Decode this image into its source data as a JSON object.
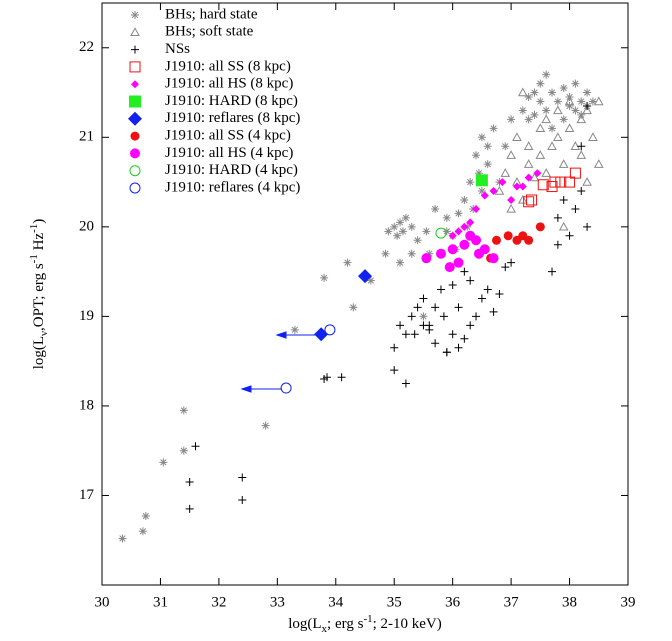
{
  "chart_data": {
    "type": "scatter",
    "xlabel_parts": [
      "log(L",
      "x",
      "; erg s",
      "-1",
      "; 2-10 keV)"
    ],
    "ylabel_parts": [
      "log(L",
      "ν",
      ",OPT; erg s",
      "-1",
      " Hz",
      "-1",
      ")"
    ],
    "xlim": [
      30,
      39
    ],
    "xticks": [
      30,
      31,
      32,
      33,
      34,
      35,
      36,
      37,
      38,
      39
    ],
    "ylim": [
      16,
      22.5
    ],
    "yticks": [
      17,
      18,
      19,
      20,
      21,
      22
    ],
    "legend": "upper left",
    "series": [
      {
        "name": "BHs; hard state",
        "color": "#888888",
        "marker": "asterisk",
        "size": 4,
        "x": [
          30.35,
          30.7,
          30.75,
          31.05,
          31.4,
          31.4,
          32.8,
          33.3,
          33.8,
          34.3,
          34.5,
          34.6,
          34.85,
          34.9,
          35.0,
          35.05,
          35.1,
          35.15,
          35.2,
          35.3,
          35.4,
          35.5,
          35.55,
          35.6,
          35.7,
          35.9,
          36.0,
          36.05,
          36.1,
          36.2,
          36.25,
          36.3,
          36.35,
          36.4,
          36.45,
          36.5,
          36.5,
          36.6,
          36.6,
          36.7,
          36.8,
          37.0,
          37.2,
          37.3,
          37.4,
          37.5,
          37.5,
          37.6,
          37.7,
          37.7,
          37.8,
          37.9,
          37.9,
          38.0,
          38.0,
          38.1,
          38.1,
          38.2,
          38.2,
          38.3,
          38.3,
          38.4,
          37.6,
          37.4,
          37.3,
          36.9,
          35.1,
          35.3,
          34.2,
          35.9
        ],
        "y": [
          16.52,
          16.6,
          16.77,
          17.37,
          17.5,
          17.95,
          17.78,
          18.85,
          19.43,
          19.1,
          19.45,
          19.4,
          19.7,
          19.95,
          20.0,
          19.9,
          20.05,
          19.95,
          20.1,
          20.0,
          19.85,
          19.0,
          19.95,
          19.7,
          20.2,
          20.1,
          19.9,
          19.75,
          20.15,
          20.3,
          20.0,
          20.5,
          20.2,
          20.8,
          20.6,
          21.0,
          20.4,
          20.7,
          20.9,
          21.1,
          20.5,
          21.2,
          21.3,
          21.45,
          21.25,
          21.4,
          21.6,
          21.3,
          21.5,
          21.1,
          21.4,
          21.55,
          21.2,
          21.35,
          21.45,
          21.6,
          21.3,
          21.4,
          21.25,
          21.5,
          21.35,
          21.4,
          21.7,
          21.5,
          21.2,
          20.9,
          19.6,
          19.7,
          19.6,
          19.95
        ]
      },
      {
        "name": "BHs; soft state",
        "color": "#888888",
        "marker": "triangle-open",
        "size": 4,
        "x": [
          36.8,
          36.9,
          37.0,
          37.1,
          37.1,
          37.2,
          37.3,
          37.3,
          37.4,
          37.5,
          37.5,
          37.6,
          37.6,
          37.7,
          37.8,
          37.8,
          37.9,
          38.0,
          38.0,
          38.1,
          38.2,
          38.2,
          38.3,
          38.4,
          38.5,
          38.5,
          38.3,
          37.2,
          37.0,
          37.9
        ],
        "y": [
          20.4,
          20.6,
          20.8,
          20.5,
          21.0,
          20.3,
          20.7,
          20.9,
          20.55,
          20.8,
          21.1,
          20.6,
          21.2,
          20.9,
          21.0,
          21.3,
          20.7,
          21.1,
          21.4,
          20.9,
          21.2,
          20.8,
          21.3,
          21.0,
          21.4,
          20.7,
          20.5,
          21.5,
          20.2,
          20.0
        ]
      },
      {
        "name": "NSs",
        "color": "#000000",
        "marker": "plus",
        "size": 4,
        "x": [
          31.6,
          31.5,
          31.5,
          32.4,
          32.4,
          33.8,
          34.1,
          33.85,
          35.0,
          35.0,
          35.1,
          35.2,
          35.3,
          35.35,
          35.4,
          35.5,
          35.5,
          35.6,
          35.7,
          35.7,
          35.8,
          35.85,
          35.9,
          36.0,
          36.0,
          36.1,
          36.1,
          36.2,
          36.3,
          36.3,
          36.4,
          36.5,
          36.6,
          36.7,
          36.8,
          35.2,
          35.6,
          35.9,
          36.2,
          37.7,
          37.8,
          37.8,
          37.9,
          38.0,
          38.1,
          38.2,
          38.3,
          38.3,
          38.2,
          37.0,
          36.9
        ],
        "y": [
          17.55,
          17.15,
          16.85,
          17.2,
          16.95,
          18.3,
          18.32,
          18.32,
          18.4,
          18.65,
          18.9,
          18.8,
          19.0,
          18.8,
          19.1,
          18.9,
          19.2,
          18.85,
          19.1,
          18.7,
          19.3,
          19.0,
          18.6,
          19.35,
          18.8,
          19.1,
          18.65,
          19.5,
          18.9,
          19.4,
          19.0,
          19.2,
          19.3,
          19.05,
          19.25,
          18.25,
          18.9,
          18.6,
          18.75,
          19.5,
          19.8,
          20.1,
          20.3,
          19.9,
          20.2,
          20.4,
          20.0,
          21.35,
          20.9,
          19.6,
          19.55
        ]
      },
      {
        "name": "J1910: all SS (8 kpc)",
        "color": "#ee1111",
        "marker": "square-open",
        "size": 5,
        "x": [
          37.3,
          37.35,
          37.55,
          37.7,
          37.75,
          37.85,
          38.0,
          38.1
        ],
        "y": [
          20.28,
          20.3,
          20.47,
          20.45,
          20.5,
          20.5,
          20.5,
          20.6
        ]
      },
      {
        "name": "J1910: all HS (8 kpc)",
        "color": "#ff00ff",
        "marker": "diamond",
        "size": 4,
        "x": [
          36.0,
          36.1,
          36.2,
          36.3,
          36.4,
          36.55,
          36.7,
          36.85,
          37.0,
          37.1,
          37.2,
          37.3,
          37.45
        ],
        "y": [
          19.9,
          19.95,
          20.0,
          20.05,
          20.2,
          20.35,
          20.4,
          20.5,
          20.3,
          20.45,
          20.45,
          20.55,
          20.6
        ]
      },
      {
        "name": "J1910: HARD (8 kpc)",
        "color": "#22ee22",
        "marker": "square",
        "size": 6,
        "x": [
          36.5
        ],
        "y": [
          20.52
        ]
      },
      {
        "name": "J1910: reflares (8 kpc)",
        "color": "#1122ee",
        "marker": "diamond",
        "size": 7,
        "x": [
          34.5,
          33.75
        ],
        "y": [
          19.45,
          18.8
        ]
      },
      {
        "name": "J1910: all SS (4 kpc)",
        "color": "#ee1111",
        "marker": "circle",
        "size": 4.5,
        "x": [
          36.65,
          36.75,
          36.95,
          37.1,
          37.2,
          37.3,
          37.5
        ],
        "y": [
          19.65,
          19.85,
          19.9,
          19.85,
          19.9,
          19.85,
          20.0
        ]
      },
      {
        "name": "J1910: all HS (4 kpc)",
        "color": "#ff00ff",
        "marker": "circle",
        "size": 5,
        "x": [
          35.55,
          35.8,
          35.95,
          36.0,
          36.1,
          36.2,
          36.3,
          36.4,
          36.45,
          36.55,
          36.7
        ],
        "y": [
          19.65,
          19.7,
          19.55,
          19.75,
          19.6,
          19.8,
          19.9,
          19.85,
          19.7,
          19.75,
          19.65
        ]
      },
      {
        "name": "J1910: HARD (4 kpc)",
        "color": "#22cc22",
        "marker": "circle-open",
        "size": 5,
        "x": [
          35.8
        ],
        "y": [
          19.93
        ]
      },
      {
        "name": "J1910: reflares (4 kpc)",
        "color": "#1122ee",
        "marker": "circle-open",
        "size": 5,
        "x": [
          33.9,
          33.15
        ],
        "y": [
          18.85,
          18.2
        ]
      }
    ]
  }
}
